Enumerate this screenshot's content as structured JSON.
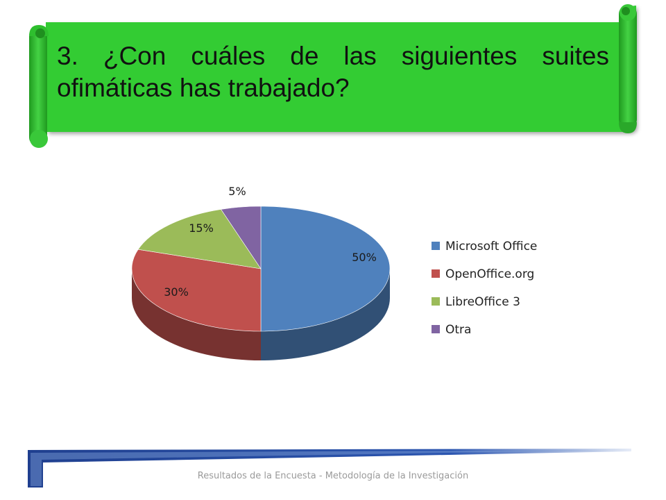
{
  "slide": {
    "title": "3. ¿Con cuáles de las siguientes suites ofimáticas has trabajado?",
    "footer": "Resultados de la Encuesta - Metodología de la Investigación",
    "banner_color": "#33cc33",
    "accent_color": "#1f3f8f"
  },
  "chart_data": {
    "type": "pie",
    "style": "3d",
    "categories": [
      "Microsoft Office",
      "OpenOffice.org",
      "LibreOffice 3",
      "Otra"
    ],
    "values": [
      50,
      30,
      15,
      5
    ],
    "labels": [
      "50%",
      "30%",
      "15%",
      "5%"
    ],
    "colors": [
      "#4f81bd",
      "#c0504d",
      "#9bbb59",
      "#8064a2"
    ],
    "legend_position": "right"
  }
}
